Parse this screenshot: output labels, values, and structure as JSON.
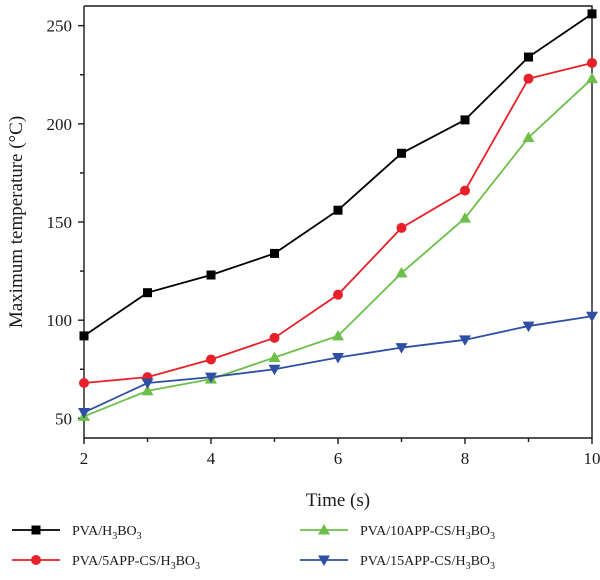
{
  "chart_data": {
    "type": "line",
    "xlabel": "Time (s)",
    "ylabel": "Maximum temperature (°C)",
    "xlim": [
      2,
      10
    ],
    "ylim": [
      40,
      260
    ],
    "xticks": [
      2,
      4,
      6,
      8,
      10
    ],
    "yticks": [
      50,
      100,
      150,
      200,
      250
    ],
    "x": [
      2,
      3,
      4,
      5,
      6,
      7,
      8,
      9,
      10
    ],
    "legend_position": "bottom",
    "series": [
      {
        "name": "PVA/H3BO3",
        "label_base": "PVA/H",
        "label_sub1": "3",
        "label_mid": "BO",
        "label_sub2": "3",
        "color": "#000000",
        "marker": "square",
        "values": [
          92,
          114,
          123,
          134,
          156,
          185,
          202,
          234,
          256
        ]
      },
      {
        "name": "PVA/5APP-CS/H3BO3",
        "label_base": "PVA/5APP-CS/H",
        "label_sub1": "3",
        "label_mid": "BO",
        "label_sub2": "3",
        "color": "#e8202a",
        "marker": "circle",
        "values": [
          68,
          71,
          80,
          91,
          113,
          147,
          166,
          223,
          231
        ]
      },
      {
        "name": "PVA/10APP-CS/H3BO3",
        "label_base": "PVA/10APP-CS/H",
        "label_sub1": "3",
        "label_mid": "BO",
        "label_sub2": "3",
        "color": "#6cc04a",
        "marker": "triangle-up",
        "values": [
          51,
          64,
          70,
          81,
          92,
          124,
          152,
          193,
          223
        ]
      },
      {
        "name": "PVA/15APP-CS/H3BO3",
        "label_base": "PVA/15APP-CS/H",
        "label_sub1": "3",
        "label_mid": "BO",
        "label_sub2": "3",
        "color": "#2e4fa3",
        "marker": "triangle-down",
        "values": [
          53,
          68,
          71,
          75,
          81,
          86,
          90,
          97,
          102
        ]
      }
    ]
  }
}
